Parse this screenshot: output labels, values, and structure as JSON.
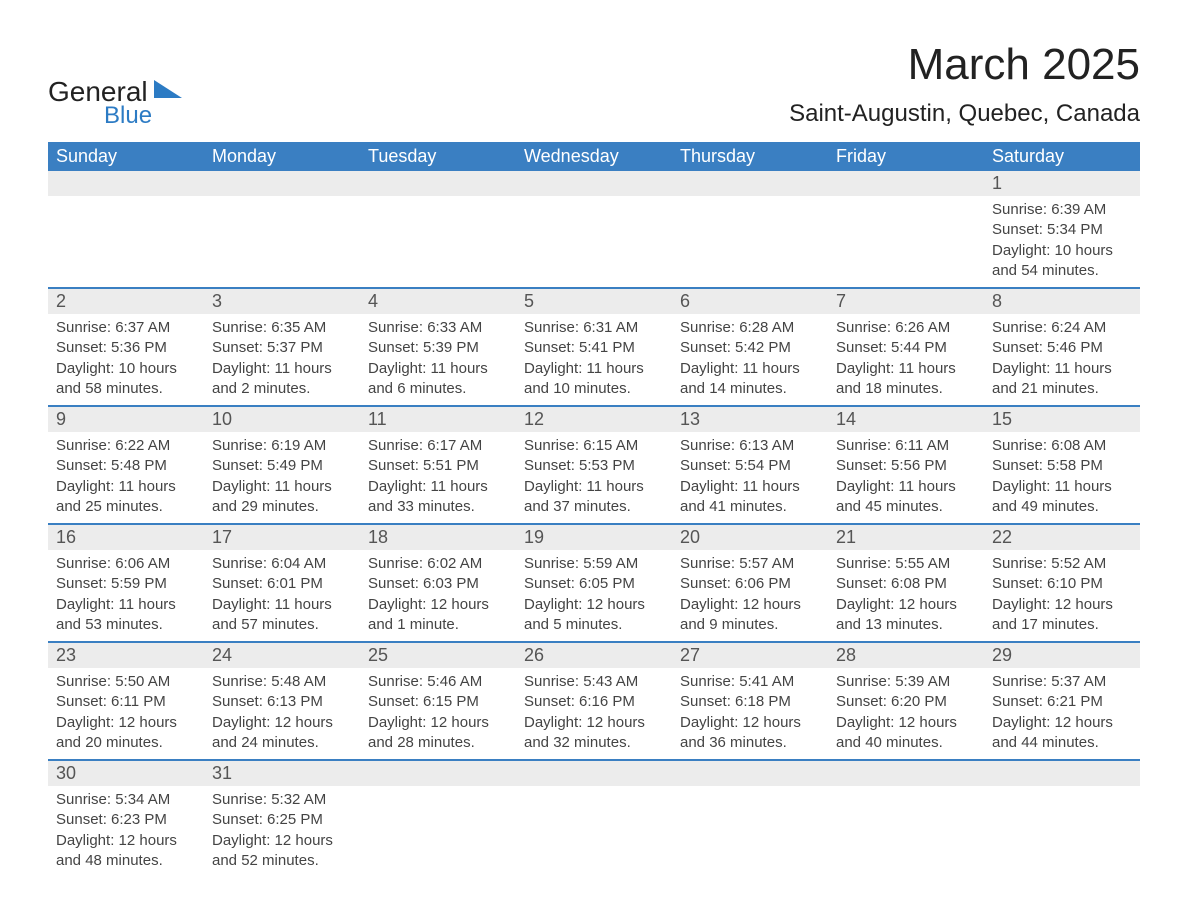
{
  "logo": {
    "word1": "General",
    "word2": "Blue"
  },
  "title": "March 2025",
  "location": "Saint-Augustin, Quebec, Canada",
  "colors": {
    "header_bg": "#3a7fc2",
    "header_text": "#ffffff",
    "daynum_bg": "#ececec",
    "row_border": "#3a7fc2",
    "logo_accent": "#2c7bc4",
    "body_text": "#444444"
  },
  "day_headers": [
    "Sunday",
    "Monday",
    "Tuesday",
    "Wednesday",
    "Thursday",
    "Friday",
    "Saturday"
  ],
  "weeks": [
    [
      null,
      null,
      null,
      null,
      null,
      null,
      {
        "n": "1",
        "sr": "Sunrise: 6:39 AM",
        "ss": "Sunset: 5:34 PM",
        "d1": "Daylight: 10 hours",
        "d2": "and 54 minutes."
      }
    ],
    [
      {
        "n": "2",
        "sr": "Sunrise: 6:37 AM",
        "ss": "Sunset: 5:36 PM",
        "d1": "Daylight: 10 hours",
        "d2": "and 58 minutes."
      },
      {
        "n": "3",
        "sr": "Sunrise: 6:35 AM",
        "ss": "Sunset: 5:37 PM",
        "d1": "Daylight: 11 hours",
        "d2": "and 2 minutes."
      },
      {
        "n": "4",
        "sr": "Sunrise: 6:33 AM",
        "ss": "Sunset: 5:39 PM",
        "d1": "Daylight: 11 hours",
        "d2": "and 6 minutes."
      },
      {
        "n": "5",
        "sr": "Sunrise: 6:31 AM",
        "ss": "Sunset: 5:41 PM",
        "d1": "Daylight: 11 hours",
        "d2": "and 10 minutes."
      },
      {
        "n": "6",
        "sr": "Sunrise: 6:28 AM",
        "ss": "Sunset: 5:42 PM",
        "d1": "Daylight: 11 hours",
        "d2": "and 14 minutes."
      },
      {
        "n": "7",
        "sr": "Sunrise: 6:26 AM",
        "ss": "Sunset: 5:44 PM",
        "d1": "Daylight: 11 hours",
        "d2": "and 18 minutes."
      },
      {
        "n": "8",
        "sr": "Sunrise: 6:24 AM",
        "ss": "Sunset: 5:46 PM",
        "d1": "Daylight: 11 hours",
        "d2": "and 21 minutes."
      }
    ],
    [
      {
        "n": "9",
        "sr": "Sunrise: 6:22 AM",
        "ss": "Sunset: 5:48 PM",
        "d1": "Daylight: 11 hours",
        "d2": "and 25 minutes."
      },
      {
        "n": "10",
        "sr": "Sunrise: 6:19 AM",
        "ss": "Sunset: 5:49 PM",
        "d1": "Daylight: 11 hours",
        "d2": "and 29 minutes."
      },
      {
        "n": "11",
        "sr": "Sunrise: 6:17 AM",
        "ss": "Sunset: 5:51 PM",
        "d1": "Daylight: 11 hours",
        "d2": "and 33 minutes."
      },
      {
        "n": "12",
        "sr": "Sunrise: 6:15 AM",
        "ss": "Sunset: 5:53 PM",
        "d1": "Daylight: 11 hours",
        "d2": "and 37 minutes."
      },
      {
        "n": "13",
        "sr": "Sunrise: 6:13 AM",
        "ss": "Sunset: 5:54 PM",
        "d1": "Daylight: 11 hours",
        "d2": "and 41 minutes."
      },
      {
        "n": "14",
        "sr": "Sunrise: 6:11 AM",
        "ss": "Sunset: 5:56 PM",
        "d1": "Daylight: 11 hours",
        "d2": "and 45 minutes."
      },
      {
        "n": "15",
        "sr": "Sunrise: 6:08 AM",
        "ss": "Sunset: 5:58 PM",
        "d1": "Daylight: 11 hours",
        "d2": "and 49 minutes."
      }
    ],
    [
      {
        "n": "16",
        "sr": "Sunrise: 6:06 AM",
        "ss": "Sunset: 5:59 PM",
        "d1": "Daylight: 11 hours",
        "d2": "and 53 minutes."
      },
      {
        "n": "17",
        "sr": "Sunrise: 6:04 AM",
        "ss": "Sunset: 6:01 PM",
        "d1": "Daylight: 11 hours",
        "d2": "and 57 minutes."
      },
      {
        "n": "18",
        "sr": "Sunrise: 6:02 AM",
        "ss": "Sunset: 6:03 PM",
        "d1": "Daylight: 12 hours",
        "d2": "and 1 minute."
      },
      {
        "n": "19",
        "sr": "Sunrise: 5:59 AM",
        "ss": "Sunset: 6:05 PM",
        "d1": "Daylight: 12 hours",
        "d2": "and 5 minutes."
      },
      {
        "n": "20",
        "sr": "Sunrise: 5:57 AM",
        "ss": "Sunset: 6:06 PM",
        "d1": "Daylight: 12 hours",
        "d2": "and 9 minutes."
      },
      {
        "n": "21",
        "sr": "Sunrise: 5:55 AM",
        "ss": "Sunset: 6:08 PM",
        "d1": "Daylight: 12 hours",
        "d2": "and 13 minutes."
      },
      {
        "n": "22",
        "sr": "Sunrise: 5:52 AM",
        "ss": "Sunset: 6:10 PM",
        "d1": "Daylight: 12 hours",
        "d2": "and 17 minutes."
      }
    ],
    [
      {
        "n": "23",
        "sr": "Sunrise: 5:50 AM",
        "ss": "Sunset: 6:11 PM",
        "d1": "Daylight: 12 hours",
        "d2": "and 20 minutes."
      },
      {
        "n": "24",
        "sr": "Sunrise: 5:48 AM",
        "ss": "Sunset: 6:13 PM",
        "d1": "Daylight: 12 hours",
        "d2": "and 24 minutes."
      },
      {
        "n": "25",
        "sr": "Sunrise: 5:46 AM",
        "ss": "Sunset: 6:15 PM",
        "d1": "Daylight: 12 hours",
        "d2": "and 28 minutes."
      },
      {
        "n": "26",
        "sr": "Sunrise: 5:43 AM",
        "ss": "Sunset: 6:16 PM",
        "d1": "Daylight: 12 hours",
        "d2": "and 32 minutes."
      },
      {
        "n": "27",
        "sr": "Sunrise: 5:41 AM",
        "ss": "Sunset: 6:18 PM",
        "d1": "Daylight: 12 hours",
        "d2": "and 36 minutes."
      },
      {
        "n": "28",
        "sr": "Sunrise: 5:39 AM",
        "ss": "Sunset: 6:20 PM",
        "d1": "Daylight: 12 hours",
        "d2": "and 40 minutes."
      },
      {
        "n": "29",
        "sr": "Sunrise: 5:37 AM",
        "ss": "Sunset: 6:21 PM",
        "d1": "Daylight: 12 hours",
        "d2": "and 44 minutes."
      }
    ],
    [
      {
        "n": "30",
        "sr": "Sunrise: 5:34 AM",
        "ss": "Sunset: 6:23 PM",
        "d1": "Daylight: 12 hours",
        "d2": "and 48 minutes."
      },
      {
        "n": "31",
        "sr": "Sunrise: 5:32 AM",
        "ss": "Sunset: 6:25 PM",
        "d1": "Daylight: 12 hours",
        "d2": "and 52 minutes."
      },
      null,
      null,
      null,
      null,
      null
    ]
  ]
}
